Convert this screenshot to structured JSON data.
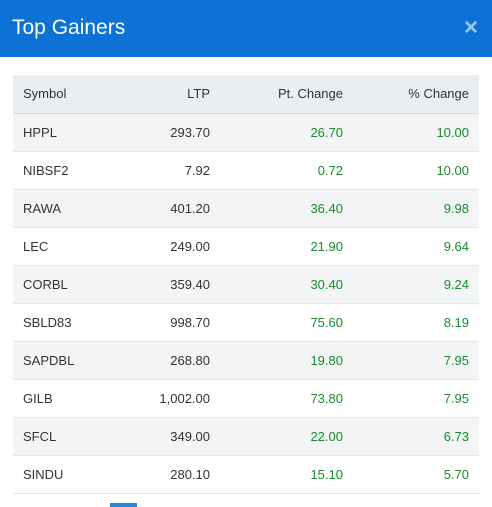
{
  "modal": {
    "title": "Top Gainers",
    "close_label": "×"
  },
  "table": {
    "headers": {
      "symbol": "Symbol",
      "ltp": "LTP",
      "pt_change": "Pt. Change",
      "pct_change": "% Change"
    },
    "rows": [
      {
        "symbol": "HPPL",
        "ltp": "293.70",
        "pt_change": "26.70",
        "pct_change": "10.00"
      },
      {
        "symbol": "NIBSF2",
        "ltp": "7.92",
        "pt_change": "0.72",
        "pct_change": "10.00"
      },
      {
        "symbol": "RAWA",
        "ltp": "401.20",
        "pt_change": "36.40",
        "pct_change": "9.98"
      },
      {
        "symbol": "LEC",
        "ltp": "249.00",
        "pt_change": "21.90",
        "pct_change": "9.64"
      },
      {
        "symbol": "CORBL",
        "ltp": "359.40",
        "pt_change": "30.40",
        "pct_change": "9.24"
      },
      {
        "symbol": "SBLD83",
        "ltp": "998.70",
        "pt_change": "75.60",
        "pct_change": "8.19"
      },
      {
        "symbol": "SAPDBL",
        "ltp": "268.80",
        "pt_change": "19.80",
        "pct_change": "7.95"
      },
      {
        "symbol": "GILB",
        "ltp": "1,002.00",
        "pt_change": "73.80",
        "pct_change": "7.95"
      },
      {
        "symbol": "SFCL",
        "ltp": "349.00",
        "pt_change": "22.00",
        "pct_change": "6.73"
      },
      {
        "symbol": "SINDU",
        "ltp": "280.10",
        "pt_change": "15.10",
        "pct_change": "5.70"
      }
    ]
  },
  "colors": {
    "header_bg": "#0d72d6",
    "positive": "#1b8a2e",
    "table_header_bg": "#eaedf1"
  }
}
